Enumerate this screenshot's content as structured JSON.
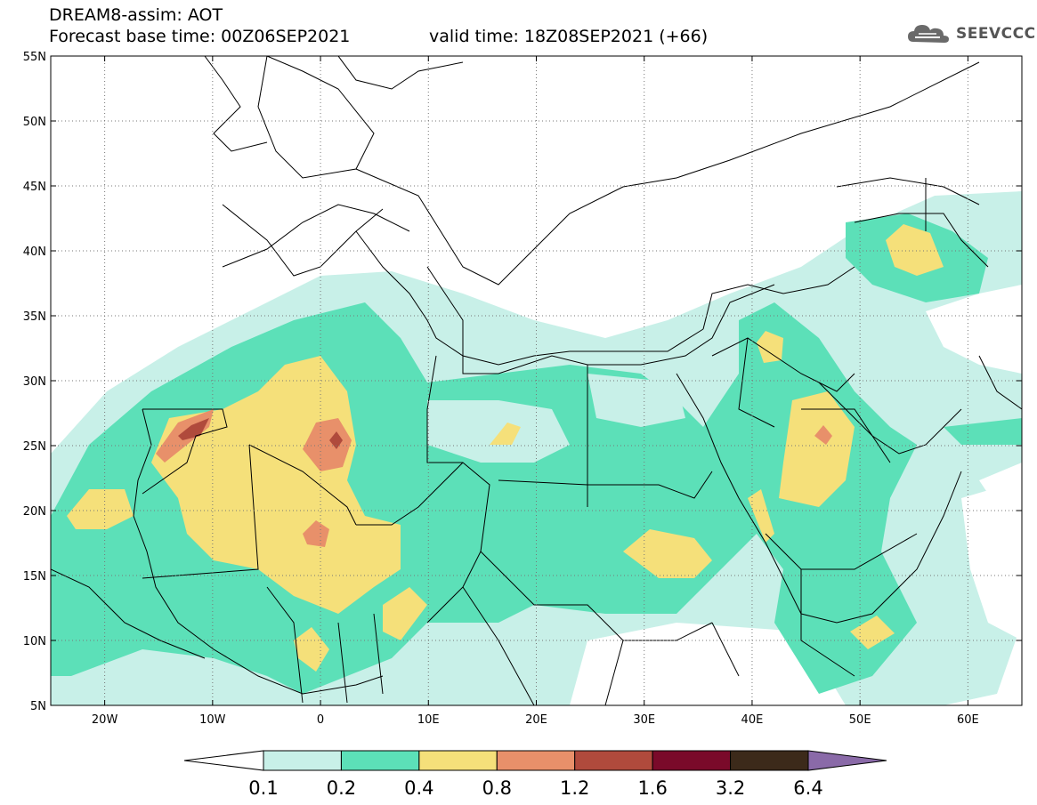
{
  "header": {
    "title": "DREAM8-assim: AOT",
    "base_time": "Forecast base time: 00Z06SEP2021",
    "valid_time": "valid time: 18Z08SEP2021 (+66)"
  },
  "logo": {
    "text": "SEEVCCC",
    "icon": "cloud-icon"
  },
  "map": {
    "lat_labels": [
      "55N",
      "50N",
      "45N",
      "40N",
      "35N",
      "30N",
      "25N",
      "20N",
      "15N",
      "10N",
      "5N"
    ],
    "lon_labels": [
      "20W",
      "10W",
      "0",
      "10E",
      "20E",
      "30E",
      "40E",
      "50E",
      "60E"
    ],
    "lon_range": [
      -25,
      65
    ],
    "lat_range": [
      5,
      55
    ],
    "grid": "dotted"
  },
  "colorbar": {
    "labels": [
      "0.1",
      "0.2",
      "0.4",
      "0.8",
      "1.2",
      "1.6",
      "3.2",
      "6.4"
    ],
    "colors": [
      "#ffffff",
      "#c8f0e8",
      "#5ce0b8",
      "#f5e07a",
      "#e8906a",
      "#b04a3c",
      "#7a0a2a",
      "#3c2a1a",
      "#8a6aa8"
    ]
  }
}
